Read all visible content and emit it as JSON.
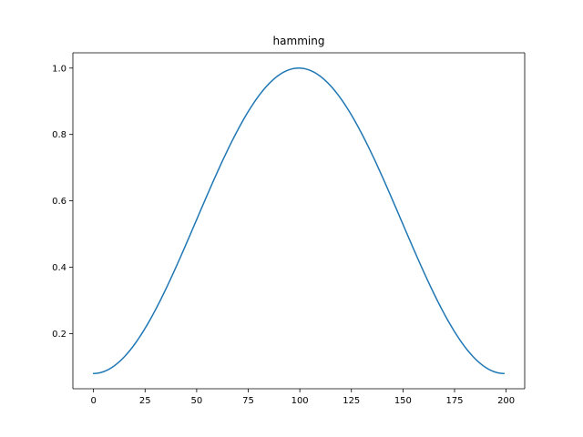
{
  "chart_data": {
    "type": "line",
    "title": "hamming",
    "xlabel": "",
    "ylabel": "",
    "xlim": [
      -10,
      209
    ],
    "ylim": [
      0.034,
      1.046
    ],
    "x_ticks": [
      0,
      25,
      50,
      75,
      100,
      125,
      150,
      175,
      200
    ],
    "x_tick_labels": [
      "0",
      "25",
      "50",
      "75",
      "100",
      "125",
      "150",
      "175",
      "200"
    ],
    "y_ticks": [
      0.2,
      0.4,
      0.6,
      0.8,
      1.0
    ],
    "y_tick_labels": [
      "0.2",
      "0.4",
      "0.6",
      "0.8",
      "1.0"
    ],
    "grid": false,
    "series": [
      {
        "color": "#1f77b4",
        "x": [
          0,
          10,
          20,
          30,
          40,
          50,
          60,
          70,
          80,
          90,
          100,
          110,
          120,
          130,
          140,
          150,
          160,
          170,
          180,
          190,
          199
        ],
        "y": [
          0.08,
          0.103,
          0.169,
          0.27,
          0.393,
          0.527,
          0.658,
          0.776,
          0.89,
          0.977,
          1.0,
          0.977,
          0.89,
          0.776,
          0.658,
          0.527,
          0.393,
          0.27,
          0.169,
          0.103,
          0.08
        ]
      }
    ]
  }
}
